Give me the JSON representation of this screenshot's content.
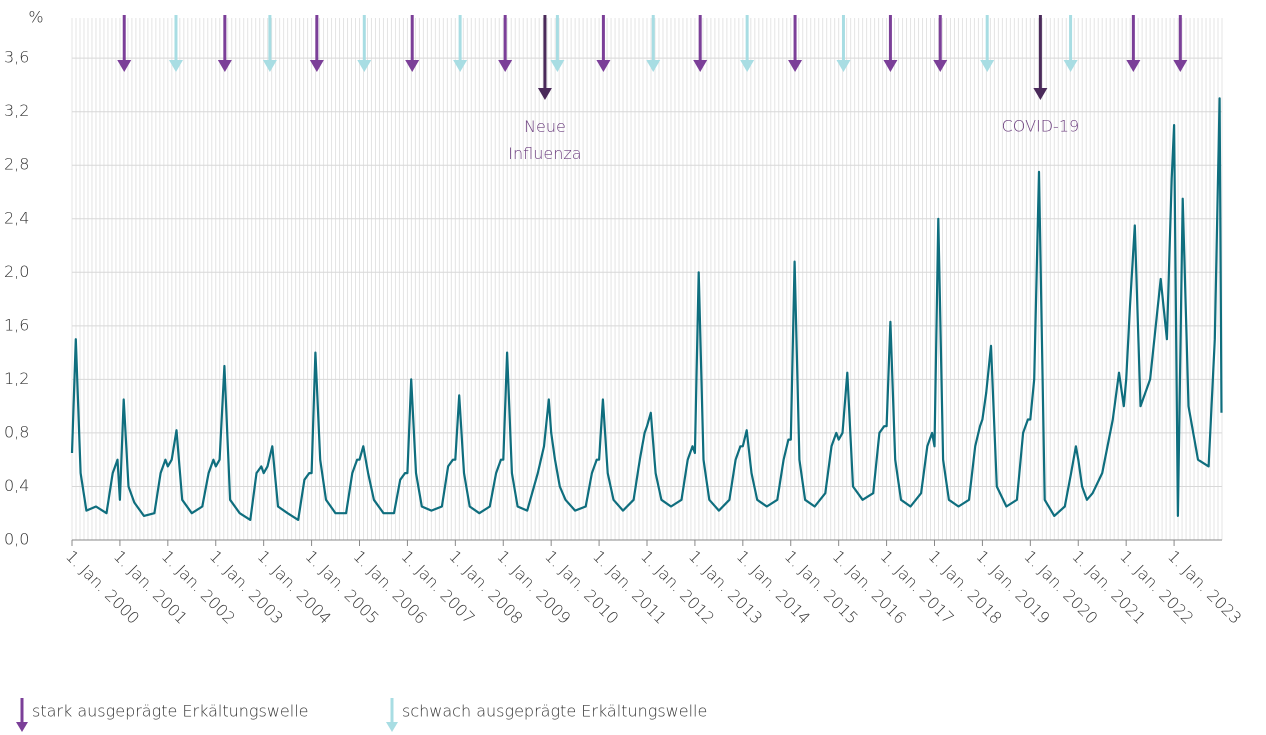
{
  "chart_data": {
    "type": "line",
    "y_label": "%",
    "xlim": [
      2000,
      2024
    ],
    "xticks": [
      {
        "value": 2000,
        "label": "1. Jan. 2000"
      },
      {
        "value": 2001,
        "label": "1. Jan. 2001"
      },
      {
        "value": 2002,
        "label": "1. Jan. 2002"
      },
      {
        "value": 2003,
        "label": "1. Jan. 2003"
      },
      {
        "value": 2004,
        "label": "1. Jan. 2004"
      },
      {
        "value": 2005,
        "label": "1. Jan. 2005"
      },
      {
        "value": 2006,
        "label": "1. Jan. 2006"
      },
      {
        "value": 2007,
        "label": "1. Jan. 2007"
      },
      {
        "value": 2008,
        "label": "1. Jan. 2008"
      },
      {
        "value": 2009,
        "label": "1. Jan. 2009"
      },
      {
        "value": 2010,
        "label": "1. Jan. 2010"
      },
      {
        "value": 2011,
        "label": "1. Jan. 2011"
      },
      {
        "value": 2012,
        "label": "1. Jan. 2012"
      },
      {
        "value": 2013,
        "label": "1. Jan. 2013"
      },
      {
        "value": 2014,
        "label": "1. Jan. 2014"
      },
      {
        "value": 2015,
        "label": "1. Jan. 2015"
      },
      {
        "value": 2016,
        "label": "1. Jan. 2016"
      },
      {
        "value": 2017,
        "label": "1. Jan. 2017"
      },
      {
        "value": 2018,
        "label": "1. Jan. 2018"
      },
      {
        "value": 2019,
        "label": "1. Jan. 2019"
      },
      {
        "value": 2020,
        "label": "1. Jan. 2020"
      },
      {
        "value": 2021,
        "label": "1. Jan. 2021"
      },
      {
        "value": 2022,
        "label": "1. Jan. 2022"
      },
      {
        "value": 2023,
        "label": "1. Jan. 2023"
      }
    ],
    "ylim": [
      0,
      3.9
    ],
    "yticks": [
      {
        "value": 0,
        "label": "0,0"
      },
      {
        "value": 0.4,
        "label": "0,4"
      },
      {
        "value": 0.8,
        "label": "0,8"
      },
      {
        "value": 1.2,
        "label": "1,2"
      },
      {
        "value": 1.6,
        "label": "1,6"
      },
      {
        "value": 2.0,
        "label": "2,0"
      },
      {
        "value": 2.4,
        "label": "2,4"
      },
      {
        "value": 2.8,
        "label": "2,8"
      },
      {
        "value": 3.2,
        "label": "3,2"
      },
      {
        "value": 3.6,
        "label": "3,6"
      }
    ],
    "grid": true,
    "x": [
      2000,
      2000.08,
      2000.18,
      2000.3,
      2000.5,
      2000.72,
      2000.85,
      2000.95,
      2001,
      2001.08,
      2001.18,
      2001.3,
      2001.5,
      2001.72,
      2001.85,
      2001.95,
      2002,
      2002.08,
      2002.18,
      2002.3,
      2002.5,
      2002.72,
      2002.85,
      2002.95,
      2003,
      2003.08,
      2003.18,
      2003.3,
      2003.5,
      2003.72,
      2003.85,
      2003.95,
      2004,
      2004.08,
      2004.18,
      2004.3,
      2004.5,
      2004.72,
      2004.85,
      2004.95,
      2005,
      2005.08,
      2005.18,
      2005.3,
      2005.5,
      2005.72,
      2005.85,
      2005.95,
      2006,
      2006.08,
      2006.18,
      2006.3,
      2006.5,
      2006.72,
      2006.85,
      2006.95,
      2007,
      2007.08,
      2007.18,
      2007.3,
      2007.5,
      2007.72,
      2007.85,
      2007.95,
      2008,
      2008.08,
      2008.18,
      2008.3,
      2008.5,
      2008.72,
      2008.85,
      2008.95,
      2009,
      2009.08,
      2009.18,
      2009.3,
      2009.5,
      2009.72,
      2009.85,
      2009.95,
      2010,
      2010.08,
      2010.18,
      2010.3,
      2010.5,
      2010.72,
      2010.85,
      2010.95,
      2011,
      2011.08,
      2011.18,
      2011.3,
      2011.5,
      2011.72,
      2011.85,
      2011.95,
      2012,
      2012.08,
      2012.18,
      2012.3,
      2012.5,
      2012.72,
      2012.85,
      2012.95,
      2013,
      2013.08,
      2013.18,
      2013.3,
      2013.5,
      2013.72,
      2013.85,
      2013.95,
      2014,
      2014.08,
      2014.18,
      2014.3,
      2014.5,
      2014.72,
      2014.85,
      2014.95,
      2015,
      2015.08,
      2015.18,
      2015.3,
      2015.5,
      2015.72,
      2015.85,
      2015.95,
      2016,
      2016.08,
      2016.18,
      2016.3,
      2016.5,
      2016.72,
      2016.85,
      2016.95,
      2017,
      2017.08,
      2017.18,
      2017.3,
      2017.5,
      2017.72,
      2017.85,
      2017.95,
      2018,
      2018.08,
      2018.18,
      2018.3,
      2018.5,
      2018.72,
      2018.85,
      2018.95,
      2019,
      2019.08,
      2019.18,
      2019.3,
      2019.5,
      2019.72,
      2019.85,
      2019.95,
      2020,
      2020.08,
      2020.18,
      2020.3,
      2020.5,
      2020.72,
      2020.85,
      2020.95,
      2021,
      2021.08,
      2021.18,
      2021.3,
      2021.5,
      2021.72,
      2021.85,
      2021.95,
      2022,
      2022.08,
      2022.18,
      2022.3,
      2022.5,
      2022.72,
      2022.85,
      2022.95,
      2023,
      2023.08,
      2023.18,
      2023.3,
      2023.5,
      2023.72,
      2023.85,
      2023.95,
      2023.99
    ],
    "series": [
      {
        "color": "#0f6e7e",
        "values": [
          0.65,
          1.5,
          0.5,
          0.22,
          0.25,
          0.2,
          0.5,
          0.6,
          0.3,
          1.05,
          0.4,
          0.28,
          0.18,
          0.2,
          0.5,
          0.6,
          0.55,
          0.6,
          0.82,
          0.3,
          0.2,
          0.25,
          0.5,
          0.6,
          0.55,
          0.6,
          1.3,
          0.3,
          0.2,
          0.15,
          0.5,
          0.55,
          0.5,
          0.55,
          0.7,
          0.25,
          0.2,
          0.15,
          0.45,
          0.5,
          0.5,
          1.4,
          0.6,
          0.3,
          0.2,
          0.2,
          0.5,
          0.6,
          0.6,
          0.7,
          0.5,
          0.3,
          0.2,
          0.2,
          0.45,
          0.5,
          0.5,
          1.2,
          0.5,
          0.25,
          0.22,
          0.25,
          0.55,
          0.6,
          0.6,
          1.08,
          0.5,
          0.25,
          0.2,
          0.25,
          0.5,
          0.6,
          0.6,
          1.4,
          0.5,
          0.25,
          0.22,
          0.5,
          0.7,
          1.05,
          0.8,
          0.6,
          0.4,
          0.3,
          0.22,
          0.25,
          0.5,
          0.6,
          0.6,
          1.05,
          0.5,
          0.3,
          0.22,
          0.3,
          0.6,
          0.8,
          0.85,
          0.95,
          0.5,
          0.3,
          0.25,
          0.3,
          0.6,
          0.7,
          0.65,
          2.0,
          0.6,
          0.3,
          0.22,
          0.3,
          0.6,
          0.7,
          0.7,
          0.82,
          0.5,
          0.3,
          0.25,
          0.3,
          0.6,
          0.75,
          0.75,
          2.08,
          0.6,
          0.3,
          0.25,
          0.35,
          0.7,
          0.8,
          0.75,
          0.8,
          1.25,
          0.4,
          0.3,
          0.35,
          0.8,
          0.85,
          0.85,
          1.63,
          0.6,
          0.3,
          0.25,
          0.35,
          0.7,
          0.8,
          0.7,
          2.4,
          0.6,
          0.3,
          0.25,
          0.3,
          0.7,
          0.85,
          0.9,
          1.1,
          1.45,
          0.4,
          0.25,
          0.3,
          0.8,
          0.9,
          0.9,
          1.2,
          2.75,
          0.3,
          0.18,
          0.25,
          0.5,
          0.7,
          0.6,
          0.4,
          0.3,
          0.35,
          0.5,
          0.9,
          1.25,
          1.0,
          1.2,
          1.75,
          2.35,
          1.0,
          1.2,
          1.95,
          1.5,
          2.7,
          3.1,
          0.18,
          2.55,
          1.0,
          0.6,
          0.55,
          1.5,
          3.3,
          0.95
        ]
      }
    ],
    "markers": [
      {
        "name": "stark ausgeprägte Erkältungswelle",
        "color": "#7b3f98",
        "x": [
          2001.09,
          2003.19,
          2005.11,
          2007.1,
          2009.04,
          2011.09,
          2013.11,
          2015.09,
          2017.08,
          2018.12,
          2022.15,
          2023.13
        ]
      },
      {
        "name": "schwach ausgeprägte Erkältungswelle",
        "color": "#a8dde3",
        "x": [
          2002.17,
          2004.13,
          2006.1,
          2008.1,
          2010.13,
          2012.13,
          2014.09,
          2016.1,
          2019.1,
          2020.84
        ]
      }
    ],
    "annotations": [
      {
        "text": "Neue Influenza",
        "x": 2009.87,
        "color": "#4a2a5a",
        "text_color": "#6b3d7e"
      },
      {
        "text": "COVID-19",
        "x": 2020.21,
        "color": "#4a2a5a",
        "text_color": "#6b3d7e"
      }
    ]
  }
}
